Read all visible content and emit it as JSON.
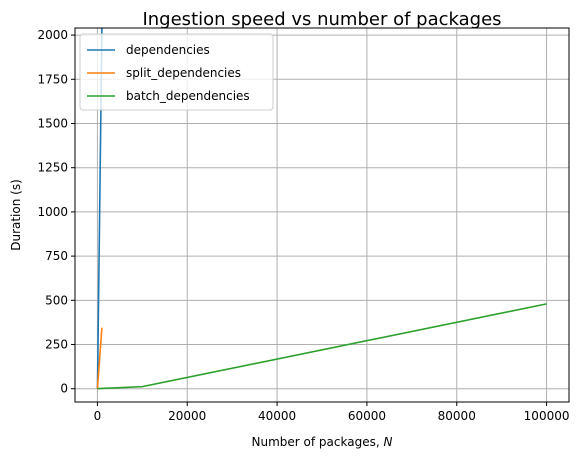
{
  "chart_data": {
    "type": "line",
    "title": "Ingestion speed vs number of packages",
    "xlabel_prefix": "Number of packages, ",
    "xlabel_var": "N",
    "ylabel": "Duration (s)",
    "xlim": [
      -4990,
      104990
    ],
    "ylim": [
      -75,
      2040
    ],
    "xticks": [
      0,
      20000,
      40000,
      60000,
      80000,
      100000
    ],
    "yticks": [
      0,
      250,
      500,
      750,
      1000,
      1250,
      1500,
      1750,
      2000
    ],
    "grid": true,
    "legend_position": "top-left",
    "series": [
      {
        "name": "dependencies",
        "color": "#1f77b4",
        "x": [
          0,
          10,
          100,
          1000
        ],
        "y": [
          0,
          2,
          180,
          2040
        ]
      },
      {
        "name": "split_dependencies",
        "color": "#ff7f0e",
        "x": [
          0,
          10,
          100,
          1000
        ],
        "y": [
          0,
          1,
          35,
          345
        ]
      },
      {
        "name": "batch_dependencies",
        "color": "#2ca02c",
        "x": [
          0,
          10,
          100,
          1000,
          10000,
          100000
        ],
        "y": [
          0,
          0.1,
          0.5,
          1.5,
          12,
          480
        ]
      }
    ]
  }
}
